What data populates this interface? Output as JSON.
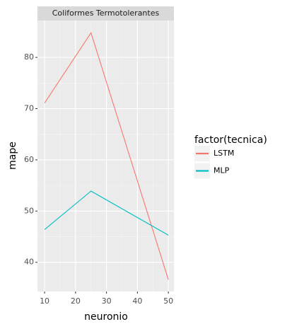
{
  "chart_data": {
    "type": "line",
    "strip": "Coliformes Termotolerantes",
    "x_label": "neuronio",
    "y_label": "mape",
    "legend_title": "factor(tecnica)",
    "x": [
      10,
      25,
      50
    ],
    "series": [
      {
        "name": "LSTM",
        "color": "#F8766D",
        "values": [
          71.1,
          84.8,
          36.6
        ]
      },
      {
        "name": "MLP",
        "color": "#00BFC4",
        "values": [
          46.4,
          53.9,
          45.3
        ]
      }
    ],
    "xlim": [
      7.7,
      51.8
    ],
    "xticks": [
      10,
      20,
      30,
      40,
      50
    ],
    "ylim": [
      34.3,
      87.2
    ],
    "yticks": [
      40,
      50,
      60,
      70,
      80
    ],
    "grid": true,
    "legend": "right"
  }
}
